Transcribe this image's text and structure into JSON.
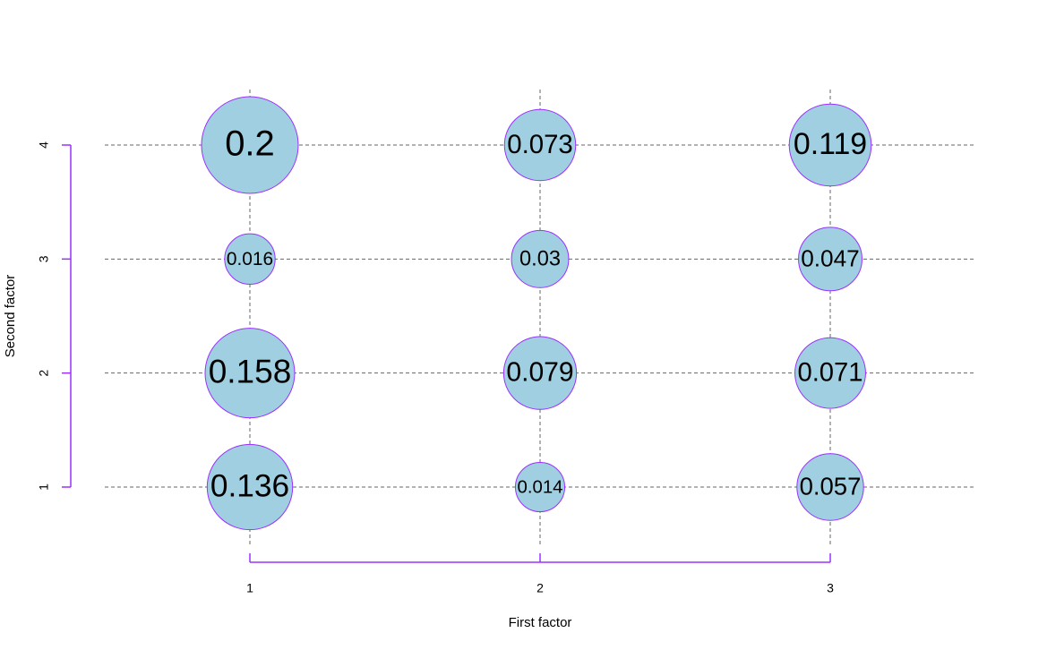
{
  "chart_data": {
    "type": "balloon",
    "xlabel": "First factor",
    "ylabel": "Second factor",
    "x_categories": [
      "1",
      "2",
      "3"
    ],
    "y_categories": [
      "1",
      "2",
      "3",
      "4"
    ],
    "values": [
      [
        0.136,
        0.158,
        0.016,
        0.2
      ],
      [
        0.014,
        0.079,
        0.03,
        0.073
      ],
      [
        0.057,
        0.071,
        0.047,
        0.119
      ]
    ],
    "color": "#9fcfe1",
    "border_color": "#9b30ff",
    "grid": true
  }
}
